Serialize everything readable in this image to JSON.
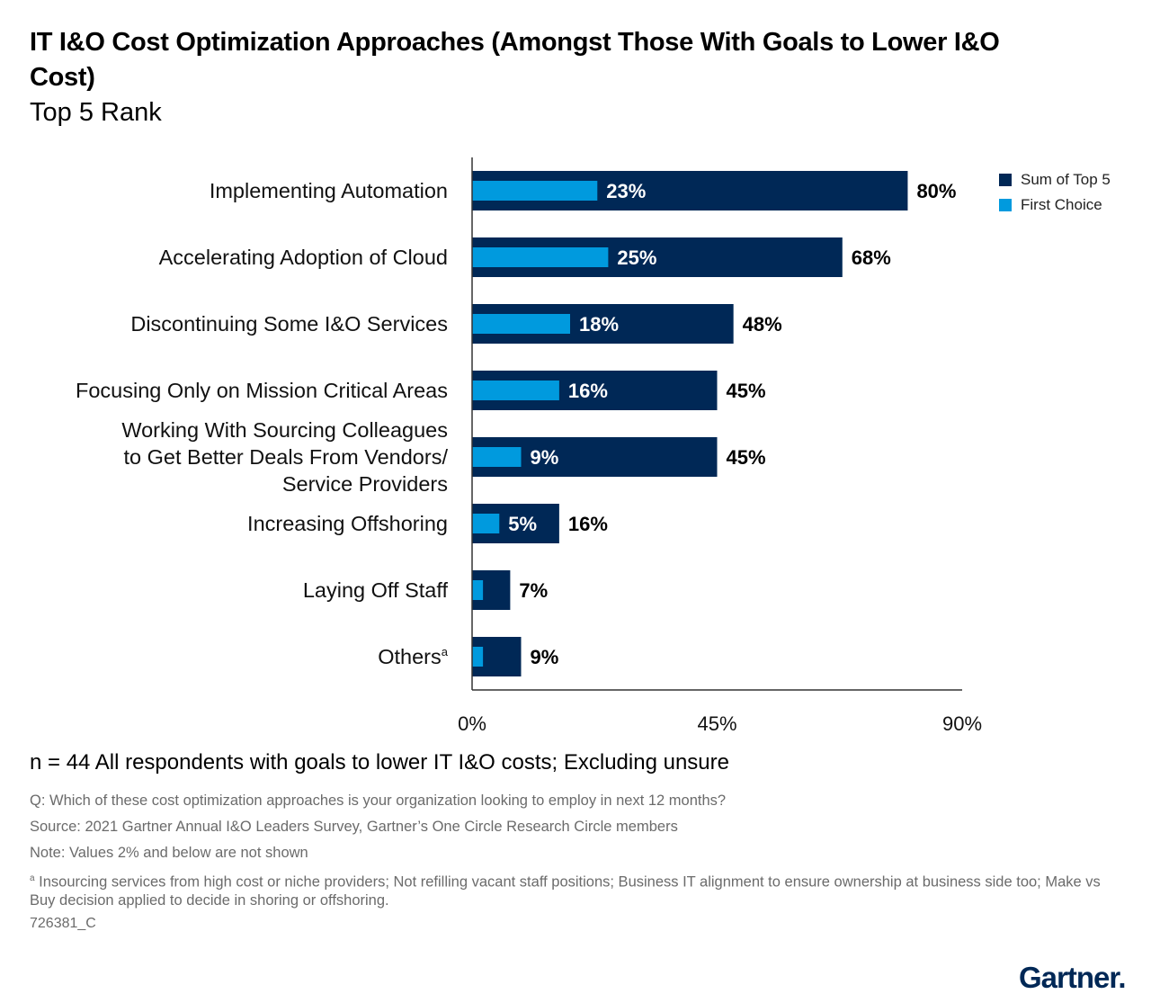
{
  "title": "IT I&O Cost Optimization Approaches (Amongst Those With Goals to Lower I&O Cost)",
  "subtitle": "Top 5 Rank",
  "colors": {
    "sum": "#002856",
    "first": "#009ADE",
    "axis": "#333333"
  },
  "chart_data": {
    "type": "bar",
    "orientation": "horizontal",
    "categories": [
      [
        "Implementing Automation"
      ],
      [
        "Accelerating Adoption of Cloud"
      ],
      [
        "Discontinuing Some I&O Services"
      ],
      [
        "Focusing Only on Mission Critical Areas"
      ],
      [
        "Working With Sourcing Colleagues",
        "to Get Better Deals From Vendors/",
        "Service Providers"
      ],
      [
        "Increasing Offshoring"
      ],
      [
        "Laying Off Staff"
      ],
      [
        "Others"
      ]
    ],
    "category_superscripts": [
      "",
      "",
      "",
      "",
      "",
      "",
      "",
      "a"
    ],
    "series": [
      {
        "name": "Sum of Top 5",
        "values": [
          80,
          68,
          48,
          45,
          45,
          16,
          7,
          9
        ],
        "labels": [
          "80%",
          "68%",
          "48%",
          "45%",
          "45%",
          "16%",
          "7%",
          "9%"
        ]
      },
      {
        "name": "First Choice",
        "values": [
          23,
          25,
          18,
          16,
          9,
          5,
          2,
          2
        ],
        "labels": [
          "23%",
          "25%",
          "18%",
          "16%",
          "9%",
          "5%",
          "",
          ""
        ]
      }
    ],
    "xlim": [
      0,
      90
    ],
    "xticks": [
      0,
      45,
      90
    ],
    "xtick_labels": [
      "0%",
      "45%",
      "90%"
    ],
    "legend_position": "top-right"
  },
  "sample": "n = 44 All respondents with goals to lower IT I&O costs; Excluding unsure",
  "notes": {
    "question": "Q: Which of these cost optimization approaches is your organization looking to employ in next 12 months?",
    "source": "Source: 2021 Gartner Annual I&O Leaders Survey, Gartner’s One Circle Research Circle members",
    "note": "Note: Values 2% and below are not shown",
    "footnote_mark": "a",
    "footnote": "Insourcing services from high cost or niche providers; Not refilling vacant staff positions; Business IT alignment to ensure ownership at business side too; Make vs Buy decision applied to decide in shoring or offshoring."
  },
  "code": "726381_C",
  "logo": "Gartner."
}
